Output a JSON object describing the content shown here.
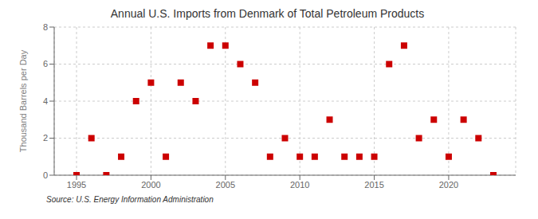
{
  "chart_data": {
    "type": "scatter",
    "title": "Annual U.S. Imports from Denmark of Total Petroleum Products",
    "ylabel": "Thousand Barrels per Day",
    "annotations": [
      "Source: U.S. Energy Information Administration"
    ],
    "x": [
      1995,
      1996,
      1997,
      1998,
      1999,
      2000,
      2001,
      2002,
      2003,
      2004,
      2005,
      2006,
      2007,
      2008,
      2009,
      2010,
      2011,
      2012,
      2013,
      2014,
      2015,
      2016,
      2017,
      2018,
      2019,
      2020,
      2021,
      2022,
      2023
    ],
    "values": [
      0,
      2,
      0,
      1,
      4,
      5,
      1,
      5,
      4,
      7,
      7,
      6,
      5,
      1,
      2,
      1,
      1,
      3,
      1,
      1,
      1,
      6,
      7,
      2,
      3,
      1,
      3,
      2,
      0
    ],
    "color": "#cc0000",
    "marker": "square",
    "xlim": [
      1993.5,
      2024.5
    ],
    "xticks": [
      1995,
      2000,
      2005,
      2010,
      2015,
      2020
    ],
    "ylim": [
      0,
      8
    ],
    "yticks": [
      0,
      2,
      4,
      6,
      8
    ],
    "grid": true
  }
}
